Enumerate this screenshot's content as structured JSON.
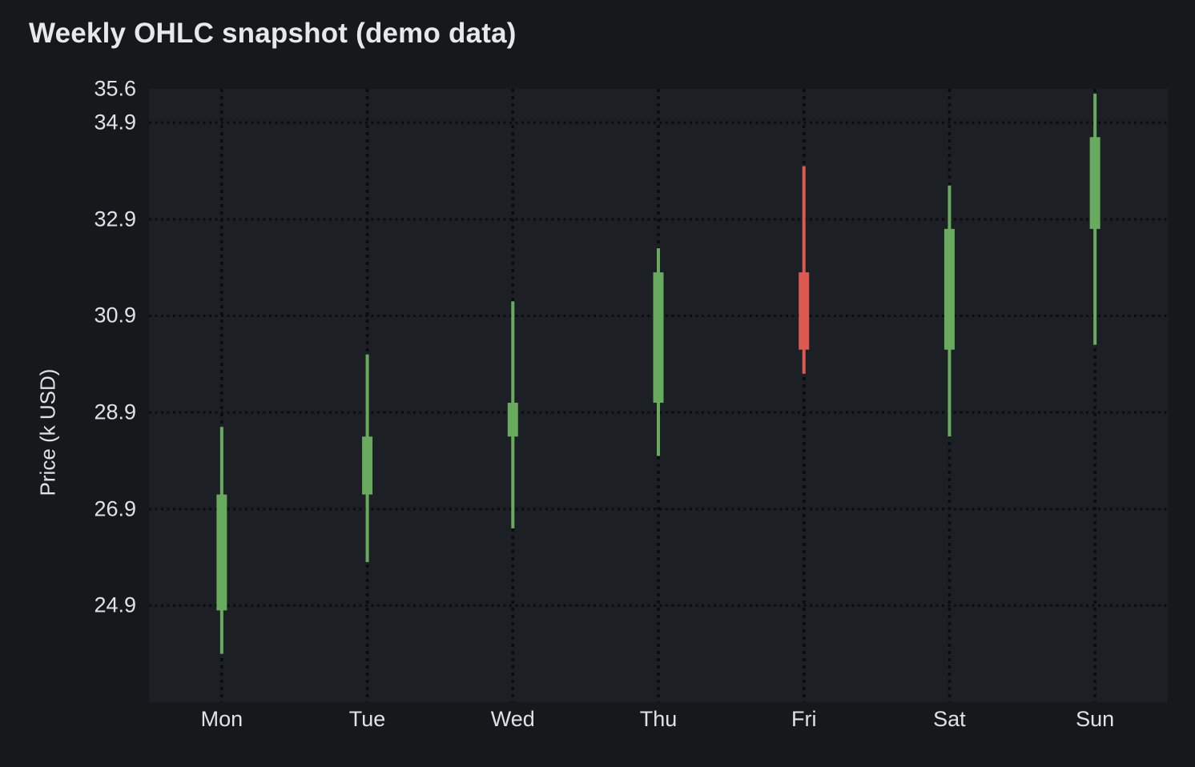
{
  "chart_data": {
    "type": "candlestick",
    "title": "Weekly OHLC snapshot (demo data)",
    "ylabel": "Price (k USD)",
    "xlabel": "",
    "categories": [
      "Mon",
      "Tue",
      "Wed",
      "Thu",
      "Fri",
      "Sat",
      "Sun"
    ],
    "ohlc": [
      {
        "day": "Mon",
        "open": 24.8,
        "high": 28.6,
        "low": 23.9,
        "close": 27.2,
        "direction": "up"
      },
      {
        "day": "Tue",
        "open": 27.2,
        "high": 30.1,
        "low": 25.8,
        "close": 28.4,
        "direction": "up"
      },
      {
        "day": "Wed",
        "open": 28.4,
        "high": 31.2,
        "low": 26.5,
        "close": 29.1,
        "direction": "up"
      },
      {
        "day": "Thu",
        "open": 29.1,
        "high": 32.3,
        "low": 28.0,
        "close": 31.8,
        "direction": "up"
      },
      {
        "day": "Fri",
        "open": 31.8,
        "high": 34.0,
        "low": 29.7,
        "close": 30.2,
        "direction": "down"
      },
      {
        "day": "Sat",
        "open": 30.2,
        "high": 33.6,
        "low": 28.4,
        "close": 32.7,
        "direction": "up"
      },
      {
        "day": "Sun",
        "open": 32.7,
        "high": 35.5,
        "low": 30.3,
        "close": 34.6,
        "direction": "up"
      }
    ],
    "y_axis": {
      "min": 22.9,
      "max": 35.6,
      "tick_labels": [
        "35.6",
        "34.9",
        "32.9",
        "30.9",
        "28.9",
        "26.9",
        "24.9"
      ],
      "tick_values": [
        35.6,
        34.9,
        32.9,
        30.9,
        28.9,
        26.9,
        24.9
      ]
    },
    "grid": true,
    "legend": false,
    "colors": {
      "up": "#69ab5e",
      "down": "#dd5950",
      "background": "#16181c",
      "plot_background": "#1c1f24",
      "grid": "#0a0c0f",
      "title_text": "#e6e8eb",
      "tick_text": "#dfe2e6"
    }
  }
}
